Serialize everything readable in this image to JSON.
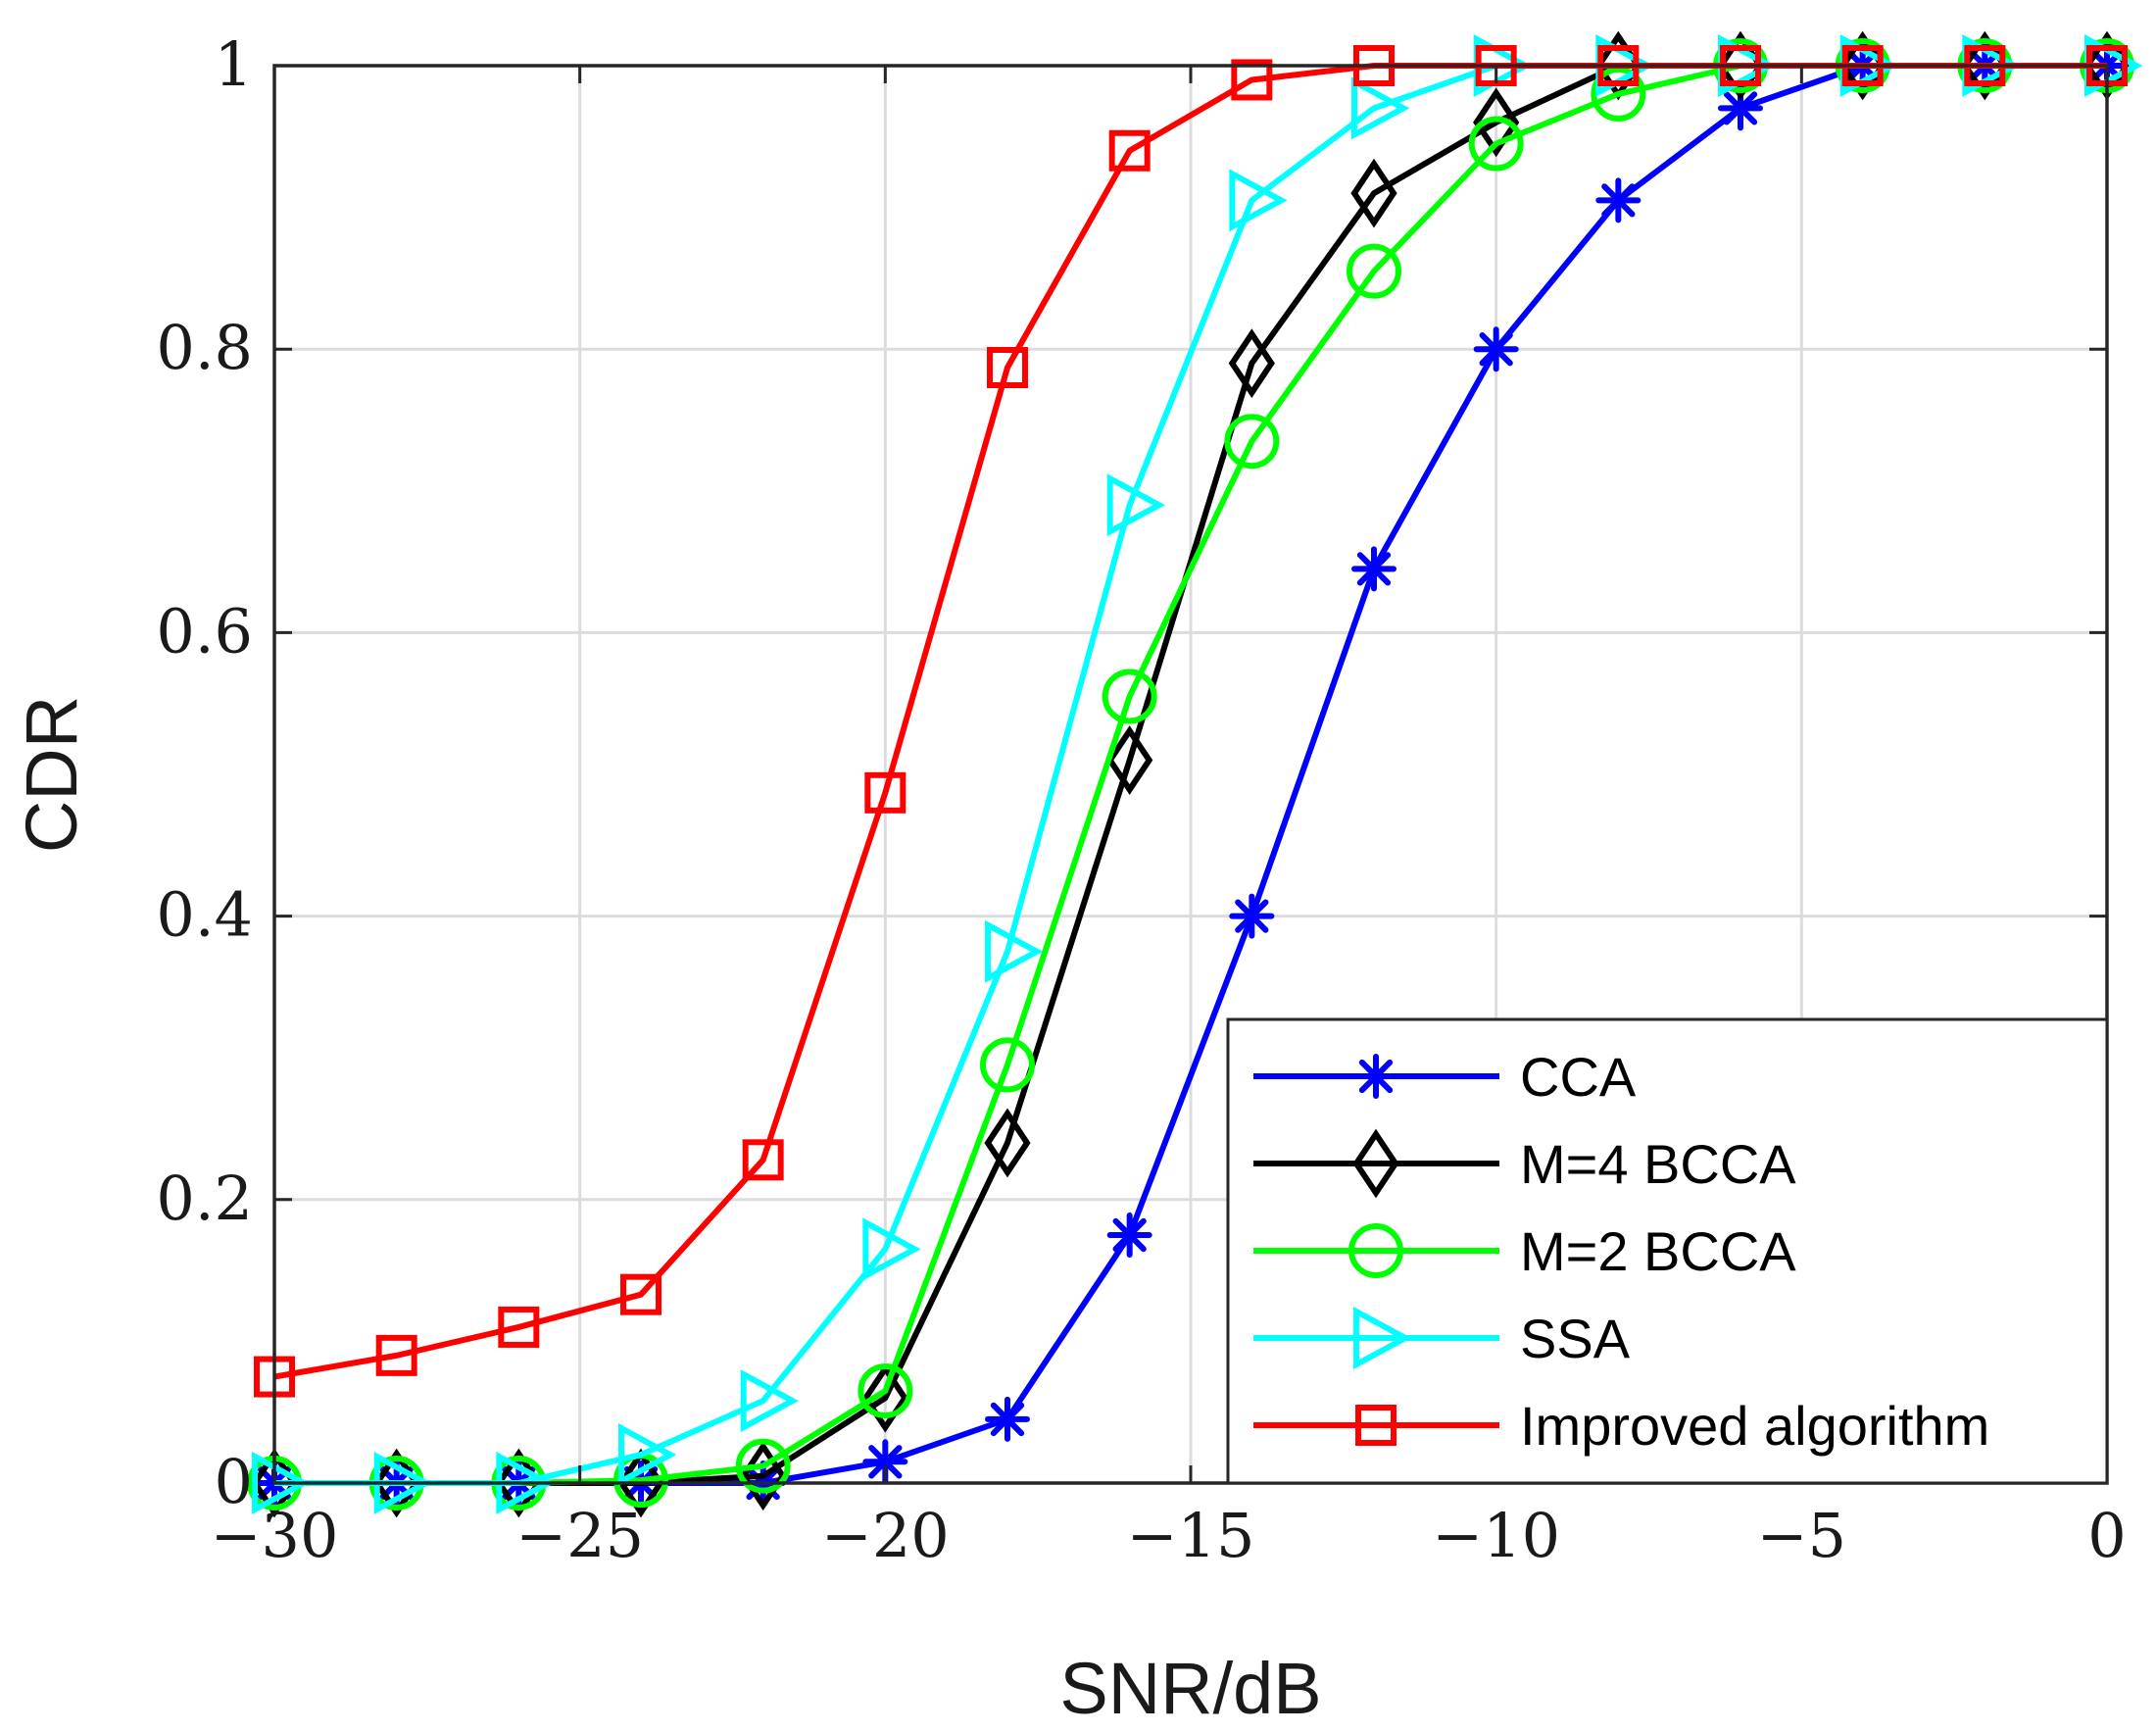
{
  "chart_data": {
    "type": "line",
    "title": "",
    "xlabel": "SNR/dB",
    "ylabel": "CDR",
    "xlim": [
      -30,
      0
    ],
    "ylim": [
      0,
      1
    ],
    "grid": true,
    "legend_position": "bottom-right",
    "xticks": [
      -30,
      -25,
      -20,
      -15,
      -10,
      -5,
      0
    ],
    "xtick_labels": [
      "−30",
      "−25",
      "−20",
      "−15",
      "−10",
      "−5",
      "0"
    ],
    "yticks": [
      0,
      0.2,
      0.4,
      0.6,
      0.8,
      1
    ],
    "ytick_labels": [
      "0",
      "0.2",
      "0.4",
      "0.6",
      "0.8",
      "1"
    ],
    "x": [
      -30,
      -28,
      -26,
      -24,
      -22,
      -20,
      -18,
      -16,
      -14,
      -12,
      -10,
      -8,
      -6,
      -4,
      -2,
      0
    ],
    "series": [
      {
        "name": "CCA",
        "color": "#0000ff",
        "marker": "asterisk",
        "values": [
          0,
          0,
          0,
          0,
          0,
          0.015,
          0.045,
          0.175,
          0.4,
          0.645,
          0.8,
          0.905,
          0.97,
          1,
          1,
          1
        ]
      },
      {
        "name": "M=4 BCCA",
        "color": "#000000",
        "marker": "diamond",
        "values": [
          0,
          0,
          0,
          0,
          0.005,
          0.06,
          0.24,
          0.51,
          0.79,
          0.91,
          0.96,
          1,
          1,
          1,
          1,
          1
        ]
      },
      {
        "name": "M=2 BCCA",
        "color": "#00ff00",
        "marker": "circle",
        "values": [
          0,
          0,
          0,
          0.002,
          0.012,
          0.065,
          0.295,
          0.555,
          0.735,
          0.855,
          0.945,
          0.98,
          1,
          1,
          1,
          1
        ]
      },
      {
        "name": "SSA",
        "color": "#00ffff",
        "marker": "triangle-right",
        "values": [
          0,
          0,
          0,
          0.02,
          0.058,
          0.165,
          0.375,
          0.69,
          0.905,
          0.97,
          1,
          1,
          1,
          1,
          1,
          1
        ]
      },
      {
        "name": "Improved algorithm",
        "color": "#ff0000",
        "marker": "square",
        "values": [
          0.075,
          0.09,
          0.11,
          0.133,
          0.228,
          0.487,
          0.787,
          0.94,
          0.99,
          1,
          1,
          1,
          1,
          1,
          1,
          1
        ]
      }
    ]
  }
}
